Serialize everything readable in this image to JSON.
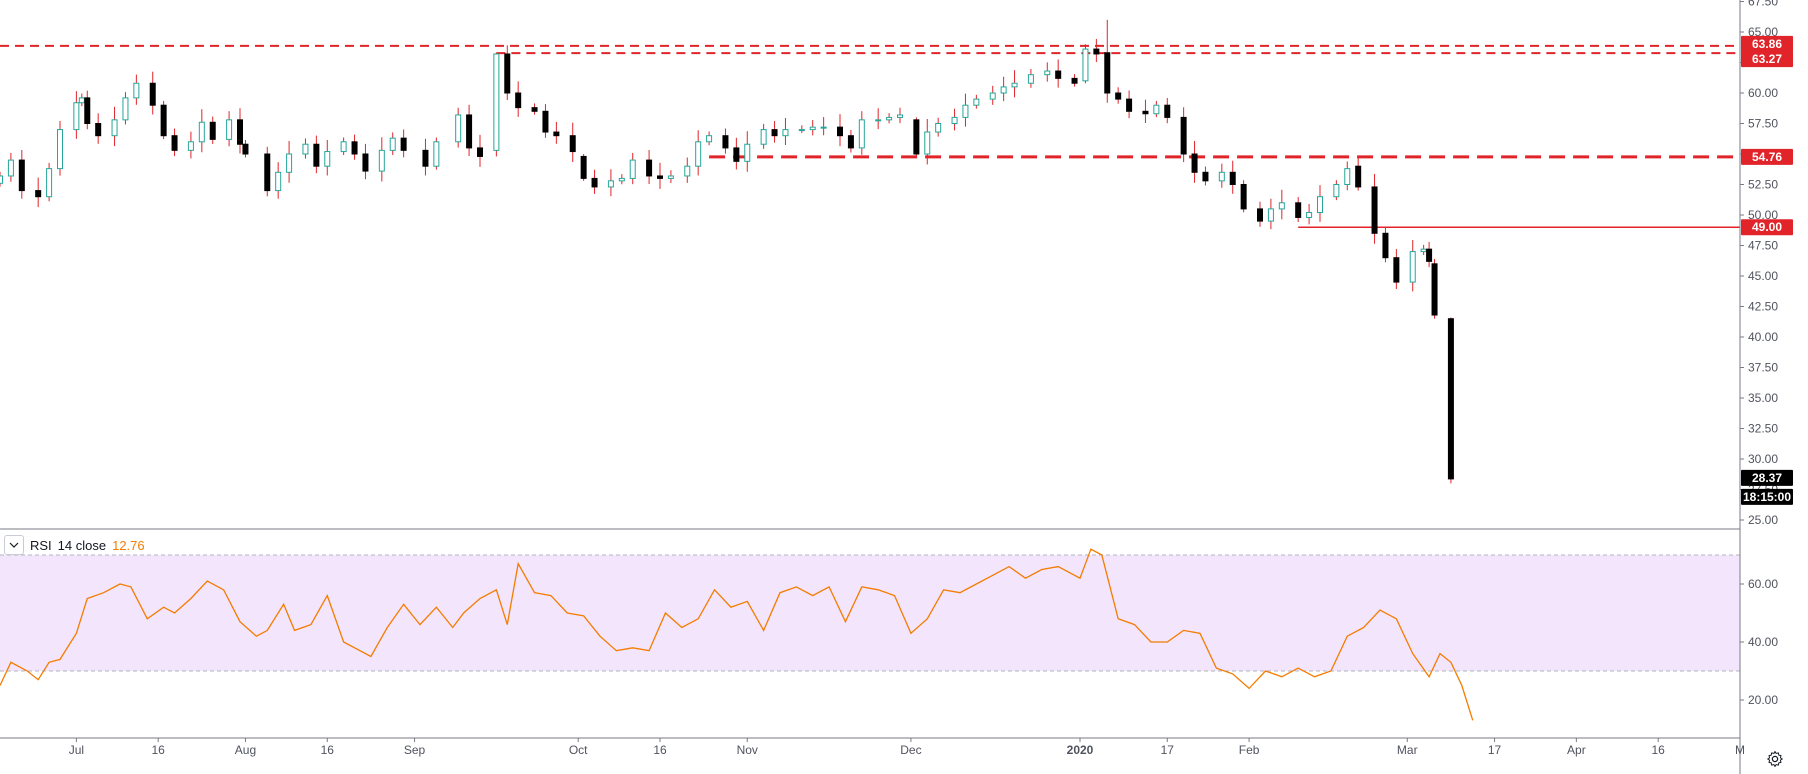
{
  "colors": {
    "up": "#26a69a",
    "down": "#000000",
    "wick": "#e0242a",
    "level": "#e0242a",
    "rsi_line": "#f57c00",
    "rsi_band": "#f3e5fb",
    "last_tag_bg": "#000000",
    "grid_text": "#50535e"
  },
  "icons": {
    "collapse": "chevron-down-icon",
    "settings": "gear-icon"
  },
  "rsi_legend": {
    "name": "RSI",
    "params": "14 close",
    "value": "12.76"
  },
  "price_axis": {
    "ticks": [
      "67.50",
      "65.00",
      "62.50",
      "60.00",
      "57.50",
      "55.00",
      "52.50",
      "50.00",
      "47.50",
      "45.00",
      "42.50",
      "40.00",
      "37.50",
      "35.00",
      "32.50",
      "30.00",
      "27.50",
      "25.00"
    ]
  },
  "rsi_axis": {
    "ticks": [
      "60.00",
      "40.00",
      "20.00"
    ]
  },
  "time_axis": {
    "ticks": [
      "Jul",
      "16",
      "Aug",
      "16",
      "Sep",
      "Oct",
      "16",
      "Nov",
      "Dec",
      "2020",
      "17",
      "Feb",
      "Mar",
      "17",
      "Apr",
      "16",
      "M"
    ]
  },
  "price_labels": {
    "last_price": "28.37",
    "countdown": "18:15:00",
    "level_labels": [
      "63.86",
      "63.27",
      "54.76",
      "49.00"
    ]
  },
  "chart_data": [
    {
      "type": "candlestick",
      "title": "",
      "ylim": [
        24,
        68
      ],
      "x_start": "2019-06-17",
      "x_end": "2020-05-01",
      "x_tick_dates": [
        "2019-07-01",
        "2019-07-16",
        "2019-08-01",
        "2019-08-16",
        "2019-09-01",
        "2019-10-01",
        "2019-10-16",
        "2019-11-01",
        "2019-12-01",
        "2020-01-01",
        "2020-01-17",
        "2020-02-01",
        "2020-03-01",
        "2020-03-17",
        "2020-04-01",
        "2020-04-16",
        "2020-05-01"
      ],
      "close_path": [
        [
          "2019-06-17",
          53.2
        ],
        [
          "2019-06-19",
          54.5
        ],
        [
          "2019-06-21",
          52.0
        ],
        [
          "2019-06-24",
          51.5
        ],
        [
          "2019-06-26",
          53.8
        ],
        [
          "2019-06-28",
          57.0
        ],
        [
          "2019-07-01",
          59.2
        ],
        [
          "2019-07-02",
          59.6
        ],
        [
          "2019-07-03",
          57.5
        ],
        [
          "2019-07-05",
          56.5
        ],
        [
          "2019-07-08",
          57.8
        ],
        [
          "2019-07-10",
          59.6
        ],
        [
          "2019-07-12",
          60.8
        ],
        [
          "2019-07-15",
          59.0
        ],
        [
          "2019-07-17",
          56.5
        ],
        [
          "2019-07-19",
          55.3
        ],
        [
          "2019-07-22",
          56.0
        ],
        [
          "2019-07-24",
          57.6
        ],
        [
          "2019-07-26",
          56.2
        ],
        [
          "2019-07-29",
          57.8
        ],
        [
          "2019-07-31",
          55.8
        ],
        [
          "2019-08-01",
          55.0
        ],
        [
          "2019-08-05",
          52.0
        ],
        [
          "2019-08-07",
          53.5
        ],
        [
          "2019-08-09",
          55.0
        ],
        [
          "2019-08-12",
          55.8
        ],
        [
          "2019-08-14",
          54.0
        ],
        [
          "2019-08-16",
          55.2
        ],
        [
          "2019-08-19",
          56.0
        ],
        [
          "2019-08-21",
          55.0
        ],
        [
          "2019-08-23",
          53.6
        ],
        [
          "2019-08-26",
          55.3
        ],
        [
          "2019-08-28",
          56.3
        ],
        [
          "2019-08-30",
          55.3
        ],
        [
          "2019-09-03",
          54.0
        ],
        [
          "2019-09-05",
          56.0
        ],
        [
          "2019-09-09",
          58.2
        ],
        [
          "2019-09-11",
          55.5
        ],
        [
          "2019-09-13",
          54.8
        ],
        [
          "2019-09-16",
          63.2
        ],
        [
          "2019-09-18",
          60.0
        ],
        [
          "2019-09-20",
          58.8
        ],
        [
          "2019-09-23",
          58.5
        ],
        [
          "2019-09-25",
          56.8
        ],
        [
          "2019-09-27",
          56.5
        ],
        [
          "2019-09-30",
          55.2
        ],
        [
          "2019-10-02",
          53.5
        ],
        [
          "2019-10-04",
          52.3
        ],
        [
          "2019-10-07",
          52.8
        ],
        [
          "2019-10-09",
          53.0
        ],
        [
          "2019-10-11",
          54.5
        ],
        [
          "2019-10-14",
          53.2
        ],
        [
          "2019-10-16",
          53.0
        ],
        [
          "2019-10-18",
          53.2
        ],
        [
          "2019-10-21",
          54.0
        ],
        [
          "2019-10-23",
          56.0
        ],
        [
          "2019-10-25",
          56.5
        ],
        [
          "2019-10-28",
          55.5
        ],
        [
          "2019-10-30",
          54.4
        ],
        [
          "2019-11-01",
          55.8
        ],
        [
          "2019-11-04",
          57.0
        ],
        [
          "2019-11-06",
          56.5
        ],
        [
          "2019-11-08",
          57.0
        ],
        [
          "2019-11-11",
          57.0
        ],
        [
          "2019-11-13",
          57.2
        ],
        [
          "2019-11-15",
          57.2
        ],
        [
          "2019-11-18",
          56.5
        ],
        [
          "2019-11-20",
          55.5
        ],
        [
          "2019-11-22",
          57.8
        ],
        [
          "2019-11-25",
          57.8
        ],
        [
          "2019-11-27",
          58.0
        ],
        [
          "2019-11-29",
          58.2
        ],
        [
          "2019-12-02",
          55.5
        ],
        [
          "2019-12-04",
          56.8
        ],
        [
          "2019-12-06",
          57.5
        ],
        [
          "2019-12-09",
          58.0
        ],
        [
          "2019-12-11",
          59.0
        ],
        [
          "2019-12-13",
          59.5
        ],
        [
          "2019-12-16",
          60.0
        ],
        [
          "2019-12-18",
          60.5
        ],
        [
          "2019-12-20",
          60.8
        ],
        [
          "2019-12-23",
          61.5
        ],
        [
          "2019-12-26",
          61.8
        ],
        [
          "2019-12-28",
          61.2
        ],
        [
          "2019-12-31",
          60.8
        ],
        [
          "2020-01-02",
          63.6
        ],
        [
          "2020-01-04",
          63.2
        ],
        [
          "2020-01-06",
          60.5
        ],
        [
          "2020-01-08",
          59.5
        ],
        [
          "2020-01-10",
          58.5
        ],
        [
          "2020-01-13",
          58.3
        ],
        [
          "2020-01-15",
          59.0
        ],
        [
          "2020-01-17",
          58.0
        ],
        [
          "2020-01-20",
          55.0
        ],
        [
          "2020-01-22",
          53.5
        ],
        [
          "2020-01-24",
          52.8
        ],
        [
          "2020-01-27",
          53.5
        ],
        [
          "2020-01-29",
          52.5
        ],
        [
          "2020-01-31",
          50.5
        ],
        [
          "2020-02-03",
          49.5
        ],
        [
          "2020-02-05",
          50.5
        ],
        [
          "2020-02-07",
          51.0
        ],
        [
          "2020-02-10",
          49.8
        ],
        [
          "2020-02-12",
          50.2
        ],
        [
          "2020-02-14",
          51.5
        ],
        [
          "2020-02-17",
          52.5
        ],
        [
          "2020-02-19",
          53.8
        ],
        [
          "2020-02-21",
          52.5
        ],
        [
          "2020-02-24",
          48.5
        ],
        [
          "2020-02-26",
          46.5
        ],
        [
          "2020-02-28",
          44.5
        ],
        [
          "2020-03-02",
          47.0
        ],
        [
          "2020-03-04",
          47.2
        ],
        [
          "2020-03-05",
          46.2
        ],
        [
          "2020-03-06",
          42.0
        ],
        [
          "2020-03-09",
          28.37
        ]
      ],
      "candles": [
        {
          "date": "2019-07-16",
          "open": 59.0,
          "high": 60.5,
          "low": 58.5,
          "close": 60.5
        },
        {
          "date": "2019-09-16",
          "open": 55.3,
          "high": 63.3,
          "low": 54.8,
          "close": 63.2
        },
        {
          "date": "2019-09-17",
          "open": 63.2,
          "high": 63.3,
          "low": 59.5,
          "close": 59.8
        },
        {
          "date": "2019-10-02",
          "open": 54.8,
          "high": 55.0,
          "low": 52.8,
          "close": 53.0
        },
        {
          "date": "2019-12-02",
          "open": 57.8,
          "high": 58.0,
          "low": 54.8,
          "close": 55.0
        },
        {
          "date": "2020-01-02",
          "open": 61.0,
          "high": 64.0,
          "low": 60.8,
          "close": 63.6
        },
        {
          "date": "2020-01-06",
          "open": 63.3,
          "high": 66.0,
          "low": 59.2,
          "close": 60.0
        },
        {
          "date": "2020-02-21",
          "open": 54.0,
          "high": 54.8,
          "low": 52.0,
          "close": 52.3
        },
        {
          "date": "2020-03-06",
          "open": 46.0,
          "high": 46.4,
          "low": 41.5,
          "close": 41.8
        },
        {
          "date": "2020-03-09",
          "open": 41.5,
          "high": 41.6,
          "low": 28.0,
          "close": 28.37
        }
      ],
      "horizontal_levels": [
        {
          "price": 63.86,
          "style": "dashed",
          "from": "2019-06-17"
        },
        {
          "price": 63.27,
          "style": "dashed",
          "from": "2019-09-16"
        },
        {
          "price": 54.76,
          "style": "dashed-bold",
          "from": "2019-10-25"
        },
        {
          "price": 49.0,
          "style": "solid",
          "from": "2020-02-10"
        }
      ]
    },
    {
      "type": "line",
      "title": "",
      "legend": [
        "RSI 14 close"
      ],
      "ylim": [
        8,
        75
      ],
      "overbought": 70,
      "oversold": 30,
      "series": [
        {
          "name": "RSI 14 close",
          "points": [
            [
              "2019-06-17",
              25
            ],
            [
              "2019-06-19",
              33
            ],
            [
              "2019-06-22",
              30
            ],
            [
              "2019-06-24",
              27
            ],
            [
              "2019-06-26",
              33
            ],
            [
              "2019-06-28",
              34
            ],
            [
              "2019-07-01",
              43
            ],
            [
              "2019-07-03",
              55
            ],
            [
              "2019-07-06",
              57
            ],
            [
              "2019-07-09",
              60
            ],
            [
              "2019-07-11",
              59
            ],
            [
              "2019-07-14",
              48
            ],
            [
              "2019-07-17",
              52
            ],
            [
              "2019-07-19",
              50
            ],
            [
              "2019-07-22",
              55
            ],
            [
              "2019-07-25",
              61
            ],
            [
              "2019-07-28",
              58
            ],
            [
              "2019-07-31",
              47
            ],
            [
              "2019-08-03",
              42
            ],
            [
              "2019-08-05",
              44
            ],
            [
              "2019-08-08",
              53
            ],
            [
              "2019-08-10",
              44
            ],
            [
              "2019-08-13",
              46
            ],
            [
              "2019-08-16",
              56
            ],
            [
              "2019-08-19",
              40
            ],
            [
              "2019-08-22",
              37
            ],
            [
              "2019-08-24",
              35
            ],
            [
              "2019-08-27",
              45
            ],
            [
              "2019-08-30",
              53
            ],
            [
              "2019-09-02",
              46
            ],
            [
              "2019-09-05",
              52
            ],
            [
              "2019-09-08",
              45
            ],
            [
              "2019-09-10",
              50
            ],
            [
              "2019-09-13",
              55
            ],
            [
              "2019-09-16",
              58
            ],
            [
              "2019-09-18",
              46
            ],
            [
              "2019-09-20",
              67
            ],
            [
              "2019-09-23",
              57
            ],
            [
              "2019-09-26",
              56
            ],
            [
              "2019-09-29",
              50
            ],
            [
              "2019-10-02",
              49
            ],
            [
              "2019-10-05",
              42
            ],
            [
              "2019-10-08",
              37
            ],
            [
              "2019-10-11",
              38
            ],
            [
              "2019-10-14",
              37
            ],
            [
              "2019-10-17",
              50
            ],
            [
              "2019-10-20",
              45
            ],
            [
              "2019-10-23",
              48
            ],
            [
              "2019-10-26",
              58
            ],
            [
              "2019-10-29",
              52
            ],
            [
              "2019-11-01",
              54
            ],
            [
              "2019-11-04",
              44
            ],
            [
              "2019-11-07",
              57
            ],
            [
              "2019-11-10",
              59
            ],
            [
              "2019-11-13",
              56
            ],
            [
              "2019-11-16",
              59
            ],
            [
              "2019-11-19",
              47
            ],
            [
              "2019-11-22",
              59
            ],
            [
              "2019-11-25",
              58
            ],
            [
              "2019-11-28",
              56
            ],
            [
              "2019-12-01",
              43
            ],
            [
              "2019-12-04",
              48
            ],
            [
              "2019-12-07",
              58
            ],
            [
              "2019-12-10",
              57
            ],
            [
              "2019-12-13",
              60
            ],
            [
              "2019-12-16",
              63
            ],
            [
              "2019-12-19",
              66
            ],
            [
              "2019-12-22",
              62
            ],
            [
              "2019-12-25",
              65
            ],
            [
              "2019-12-28",
              66
            ],
            [
              "2020-01-01",
              62
            ],
            [
              "2020-01-03",
              72
            ],
            [
              "2020-01-05",
              70
            ],
            [
              "2020-01-08",
              48
            ],
            [
              "2020-01-11",
              46
            ],
            [
              "2020-01-14",
              40
            ],
            [
              "2020-01-17",
              40
            ],
            [
              "2020-01-20",
              44
            ],
            [
              "2020-01-23",
              43
            ],
            [
              "2020-01-26",
              31
            ],
            [
              "2020-01-29",
              29
            ],
            [
              "2020-02-01",
              24
            ],
            [
              "2020-02-04",
              30
            ],
            [
              "2020-02-07",
              28
            ],
            [
              "2020-02-10",
              31
            ],
            [
              "2020-02-13",
              28
            ],
            [
              "2020-02-16",
              30
            ],
            [
              "2020-02-19",
              42
            ],
            [
              "2020-02-22",
              45
            ],
            [
              "2020-02-25",
              51
            ],
            [
              "2020-02-28",
              48
            ],
            [
              "2020-03-02",
              36
            ],
            [
              "2020-03-05",
              28
            ],
            [
              "2020-03-07",
              36
            ],
            [
              "2020-03-09",
              33
            ],
            [
              "2020-03-11",
              25
            ],
            [
              "2020-03-13",
              13
            ]
          ]
        }
      ]
    }
  ]
}
